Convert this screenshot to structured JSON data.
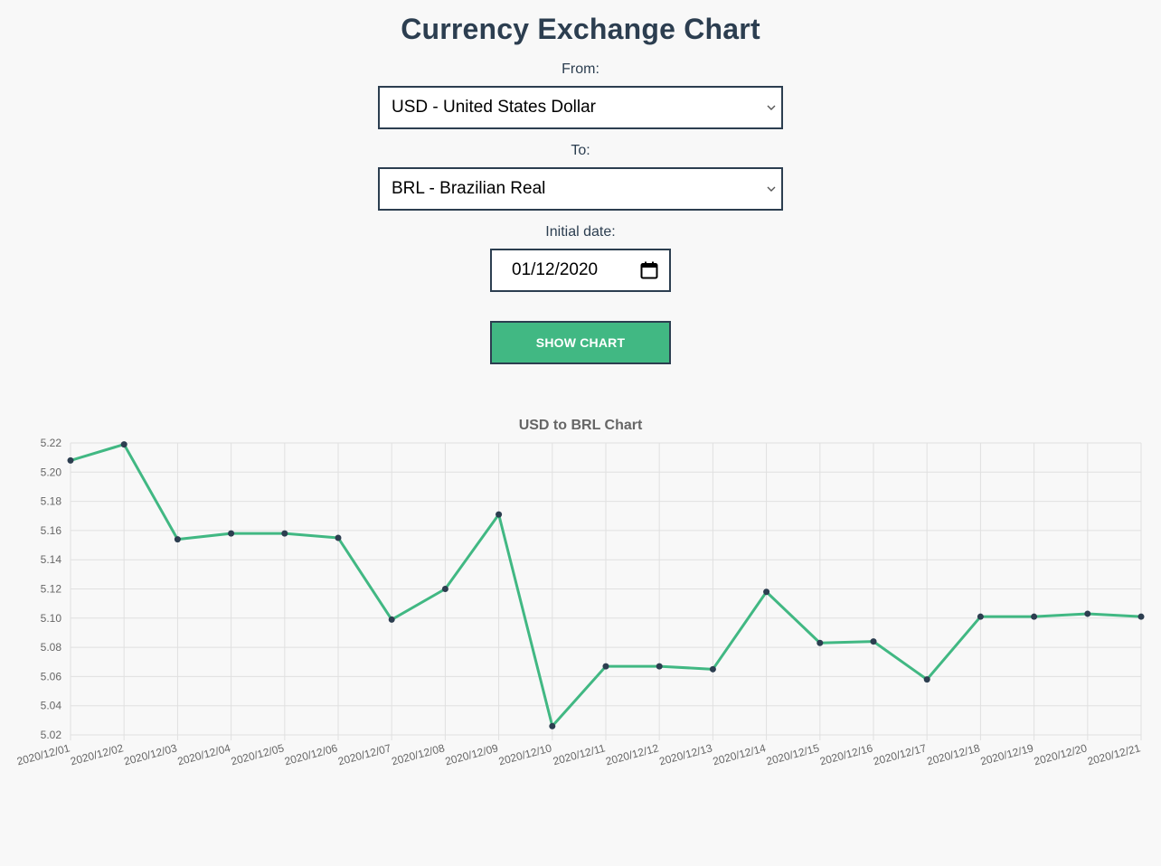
{
  "page": {
    "title": "Currency Exchange Chart"
  },
  "form": {
    "from_label": "From:",
    "from_value": "USD - United States Dollar",
    "to_label": "To:",
    "to_value": "BRL - Brazilian Real",
    "date_label": "Initial date:",
    "date_value": "01/12/2020",
    "button_label": "SHOW CHART"
  },
  "colors": {
    "line": "#41b883",
    "point": "#2c3e50",
    "grid": "#e0e0e0",
    "tick_text": "#666666"
  },
  "chart_data": {
    "type": "line",
    "title": "USD to BRL Chart",
    "xlabel": "",
    "ylabel": "",
    "ylim": [
      5.02,
      5.22
    ],
    "yticks": [
      "5.22",
      "5.20",
      "5.18",
      "5.16",
      "5.14",
      "5.12",
      "5.10",
      "5.08",
      "5.06",
      "5.04",
      "5.02"
    ],
    "grid": true,
    "categories": [
      "2020/12/01",
      "2020/12/02",
      "2020/12/03",
      "2020/12/04",
      "2020/12/05",
      "2020/12/06",
      "2020/12/07",
      "2020/12/08",
      "2020/12/09",
      "2020/12/10",
      "2020/12/11",
      "2020/12/12",
      "2020/12/13",
      "2020/12/14",
      "2020/12/15",
      "2020/12/16",
      "2020/12/17",
      "2020/12/18",
      "2020/12/19",
      "2020/12/20",
      "2020/12/21"
    ],
    "series": [
      {
        "values": [
          5.208,
          5.219,
          5.154,
          5.158,
          5.158,
          5.155,
          5.099,
          5.12,
          5.171,
          5.026,
          5.067,
          5.067,
          5.065,
          5.118,
          5.083,
          5.084,
          5.058,
          5.101,
          5.101,
          5.103,
          5.101
        ]
      }
    ]
  }
}
